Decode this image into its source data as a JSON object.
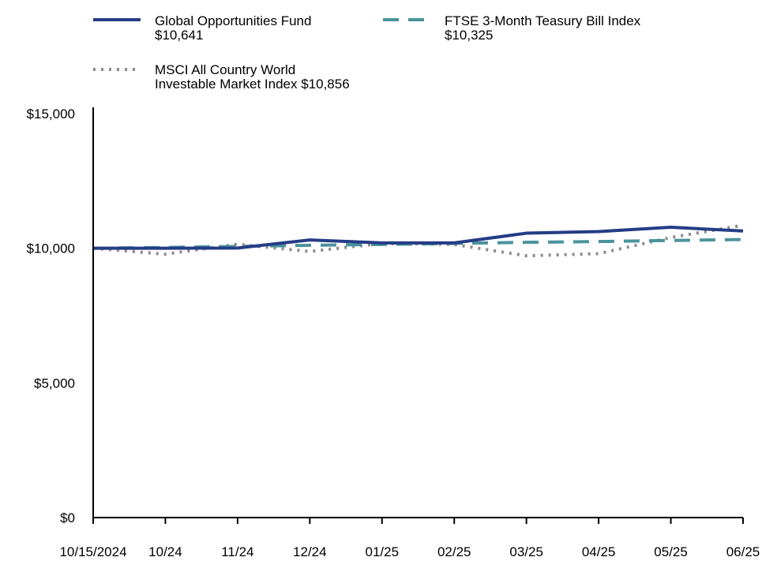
{
  "chart_data": {
    "type": "line",
    "title": "",
    "xlabel": "",
    "ylabel": "",
    "ylim": [
      0,
      15000
    ],
    "grid": false,
    "legend_position": "top",
    "categories": [
      "10/15/2024",
      "10/24",
      "11/24",
      "12/24",
      "01/25",
      "02/25",
      "03/25",
      "04/25",
      "05/25",
      "06/25"
    ],
    "y_ticks": [
      {
        "value": 0,
        "label": "$0"
      },
      {
        "value": 5000,
        "label": "$5,000"
      },
      {
        "value": 10000,
        "label": "$10,000"
      },
      {
        "value": 15000,
        "label": "$15,000"
      }
    ],
    "series": [
      {
        "name": "Global Opportunities Fund",
        "legend_lines": [
          "Global Opportunities Fund",
          "$10,641"
        ],
        "color": "#253c86",
        "style": "solid",
        "values": [
          10000,
          10000,
          10010,
          10310,
          10200,
          10200,
          10560,
          10620,
          10780,
          10641
        ]
      },
      {
        "name": "FTSE 3-Month Teasury Bill Index",
        "legend_lines": [
          "FTSE 3-Month Teasury Bill Index",
          "$10,325"
        ],
        "color": "#4b939d",
        "style": "dashed",
        "values": [
          10000,
          10030,
          10070,
          10110,
          10140,
          10180,
          10220,
          10250,
          10290,
          10325
        ]
      },
      {
        "name": "MSCI All Country World Investable Market Index",
        "legend_lines": [
          "MSCI All Country World",
          "Investable Market Index $10,856"
        ],
        "color": "#8c8c8c",
        "style": "dotted",
        "values": [
          10000,
          9780,
          10150,
          9880,
          10180,
          10140,
          9720,
          9800,
          10400,
          10856
        ]
      }
    ]
  }
}
